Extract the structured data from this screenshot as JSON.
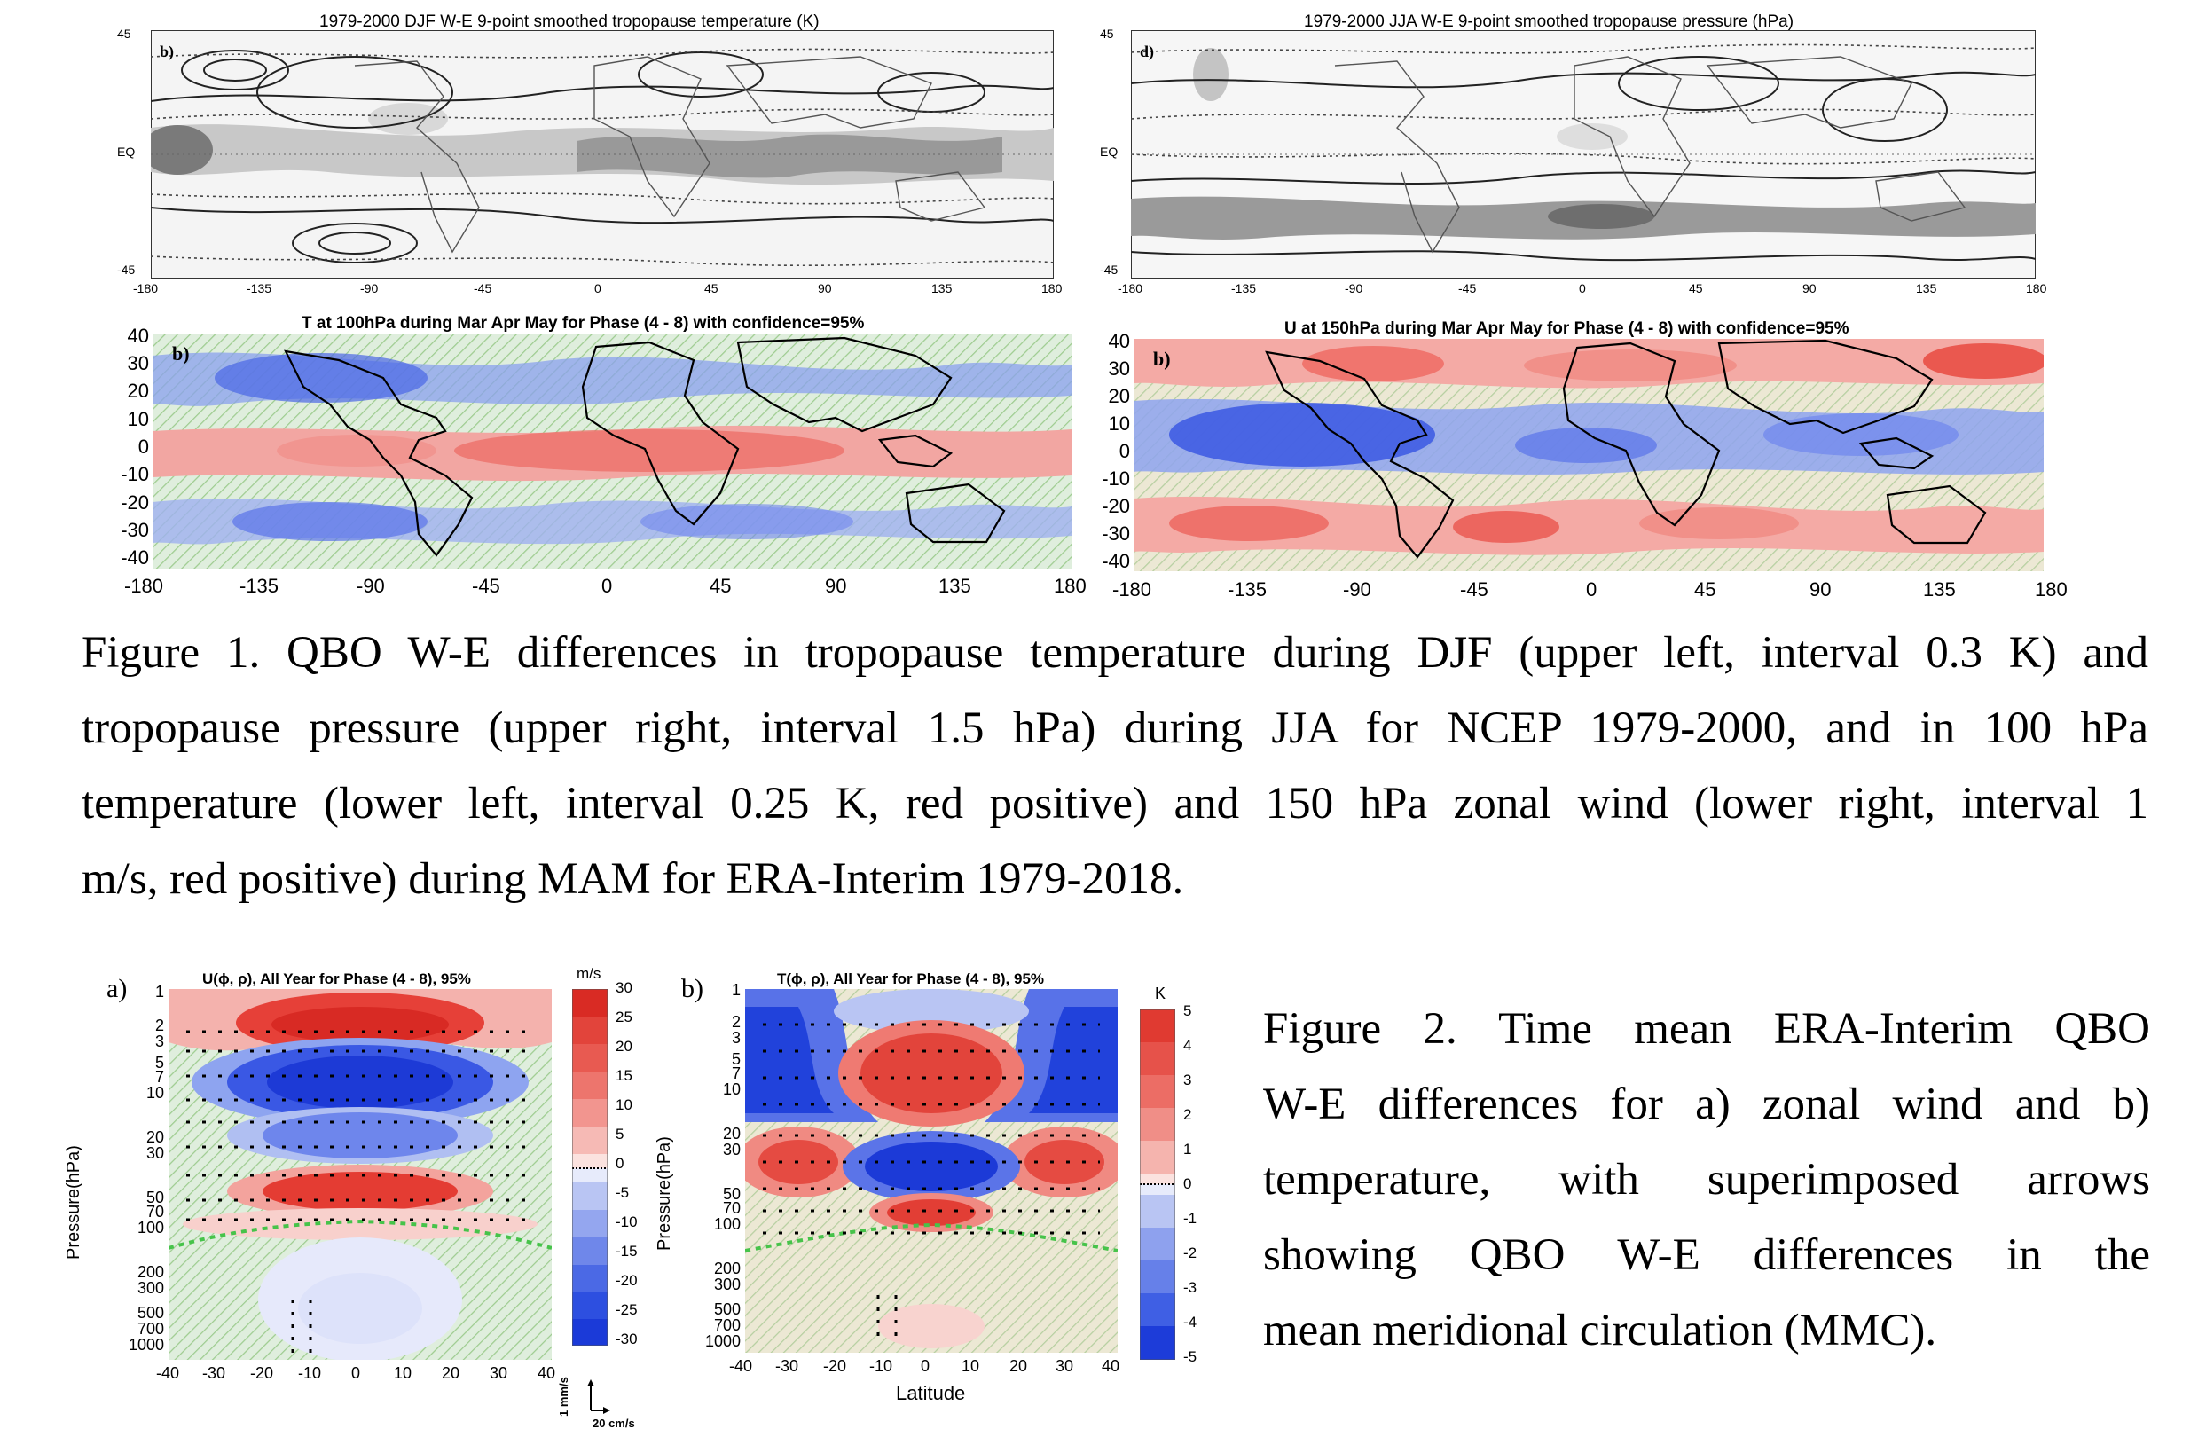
{
  "fig1": {
    "panel_a": {
      "title": "1979-2000 DJF W-E 9-point smoothed tropopause temperature (K)",
      "letter": "b)",
      "y_ticks": [
        "45",
        "EQ",
        "-45"
      ],
      "x_ticks": [
        "-180",
        "-135",
        "-90",
        "-45",
        "0",
        "45",
        "90",
        "135",
        "180"
      ]
    },
    "panel_b": {
      "title": "1979-2000 JJA W-E 9-point smoothed tropopause pressure (hPa)",
      "letter": "d)",
      "y_ticks": [
        "45",
        "EQ",
        "-45"
      ],
      "x_ticks": [
        "-180",
        "-135",
        "-90",
        "-45",
        "0",
        "45",
        "90",
        "135",
        "180"
      ]
    },
    "panel_c": {
      "title": "T at 100hPa during Mar  Apr  May for Phase (4 - 8) with confidence=95%",
      "letter": "b)",
      "y_ticks": [
        "40",
        "30",
        "20",
        "10",
        "0",
        "-10",
        "-20",
        "-30",
        "-40"
      ],
      "x_ticks": [
        "-180",
        "-135",
        "-90",
        "-45",
        "0",
        "45",
        "90",
        "135",
        "180"
      ]
    },
    "panel_d": {
      "title": "U at 150hPa during Mar  Apr  May for Phase (4 - 8) with confidence=95%",
      "letter": "b)",
      "y_ticks": [
        "40",
        "30",
        "20",
        "10",
        "0",
        "-10",
        "-20",
        "-30",
        "-40"
      ],
      "x_ticks": [
        "-180",
        "-135",
        "-90",
        "-45",
        "0",
        "45",
        "90",
        "135",
        "180"
      ]
    },
    "caption_lines": [
      "Figure 1. QBO W-E differences in tropopause temperature during DJF (upper left, interval 0.3 K) and",
      "tropopause pressure (upper right, interval 1.5 hPa) during JJA for NCEP 1979-2000, and in 100 hPa",
      "temperature (lower left, interval 0.25 K, red positive) and 150 hPa zonal wind (lower right, interval 1",
      "m/s, red positive) during MAM for ERA-Interim 1979-2018."
    ]
  },
  "fig2": {
    "panel_a": {
      "letter": "a)",
      "title": "U(ϕ, ρ), All Year  for Phase (4 - 8), 95%",
      "ylabel": "Pressure(hPa)",
      "y_ticks": [
        "1",
        "2",
        "3",
        "5",
        "7",
        "10",
        "20",
        "30",
        "50",
        "70",
        "100",
        "200",
        "300",
        "500",
        "700",
        "1000"
      ],
      "x_ticks": [
        "-40",
        "-30",
        "-20",
        "-10",
        "0",
        "10",
        "20",
        "30",
        "40"
      ],
      "colorbar_unit": "m/s",
      "colorbar_ticks": [
        "30",
        "25",
        "20",
        "15",
        "10",
        "5",
        "0",
        "-5",
        "-10",
        "-15",
        "-20",
        "-25",
        "-30"
      ],
      "arrow_scale_v": "1 mm/s",
      "arrow_scale_h": "20 cm/s"
    },
    "panel_b": {
      "letter": "b)",
      "title": "T(ϕ, ρ), All Year  for Phase (4 - 8), 95%",
      "ylabel": "Pressure(hPa)",
      "xlabel": "Latitude",
      "y_ticks": [
        "1",
        "2",
        "3",
        "5",
        "7",
        "10",
        "20",
        "30",
        "50",
        "70",
        "100",
        "200",
        "300",
        "500",
        "700",
        "1000"
      ],
      "x_ticks": [
        "-40",
        "-30",
        "-20",
        "-10",
        "0",
        "10",
        "20",
        "30",
        "40"
      ],
      "colorbar_unit": "K",
      "colorbar_ticks": [
        "5",
        "4",
        "3",
        "2",
        "1",
        "0",
        "-1",
        "-2",
        "-3",
        "-4",
        "-5"
      ]
    },
    "caption_lines": [
      "Figure 2. Time mean ERA-Interim QBO",
      "W-E differences for a) zonal wind and b)",
      "temperature, with superimposed arrows",
      "showing QBO W-E differences in the",
      "mean meridional circulation (MMC)."
    ]
  },
  "colors": {
    "positive_red": "#e8473a",
    "negative_blue": "#2f48e0",
    "neutral_green": "#cfe8d2",
    "contour_grey": "#9a9a9a"
  }
}
